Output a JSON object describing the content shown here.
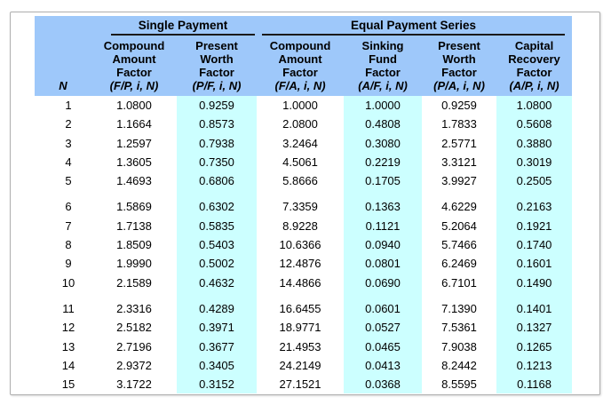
{
  "colors": {
    "header_bg": "#9ec8fa",
    "stripe_bg": "#ccffff",
    "frame_border": "#aeaeae",
    "rule": "#1a1a1a",
    "text": "#000000"
  },
  "table": {
    "groups": [
      {
        "label": "Single Payment",
        "span": 2
      },
      {
        "label": "Equal Payment Series",
        "span": 4
      }
    ],
    "columns": [
      {
        "key": "n",
        "label_lines": [],
        "notation": "N",
        "band": "white"
      },
      {
        "key": "fp",
        "label_lines": [
          "Compound",
          "Amount",
          "Factor"
        ],
        "notation": "(F/P, i, N)",
        "band": "white"
      },
      {
        "key": "pf",
        "label_lines": [
          "Present",
          "Worth",
          "Factor"
        ],
        "notation": "(P/F, i, N)",
        "band": "cyan"
      },
      {
        "key": "fa",
        "label_lines": [
          "Compound",
          "Amount",
          "Factor"
        ],
        "notation": "(F/A, i, N)",
        "band": "white"
      },
      {
        "key": "af",
        "label_lines": [
          "Sinking",
          "Fund",
          "Factor"
        ],
        "notation": "(A/F, i, N)",
        "band": "cyan"
      },
      {
        "key": "pa",
        "label_lines": [
          "Present",
          "Worth",
          "Factor"
        ],
        "notation": "(P/A, i, N)",
        "band": "white"
      },
      {
        "key": "ap",
        "label_lines": [
          "Capital",
          "Recovery",
          "Factor"
        ],
        "notation": "(A/P, i, N)",
        "band": "cyan"
      }
    ],
    "row_groups": [
      {
        "rows": [
          [
            "1",
            "1.0800",
            "0.9259",
            "1.0000",
            "1.0000",
            "0.9259",
            "1.0800"
          ],
          [
            "2",
            "1.1664",
            "0.8573",
            "2.0800",
            "0.4808",
            "1.7833",
            "0.5608"
          ],
          [
            "3",
            "1.2597",
            "0.7938",
            "3.2464",
            "0.3080",
            "2.5771",
            "0.3880"
          ],
          [
            "4",
            "1.3605",
            "0.7350",
            "4.5061",
            "0.2219",
            "3.3121",
            "0.3019"
          ],
          [
            "5",
            "1.4693",
            "0.6806",
            "5.8666",
            "0.1705",
            "3.9927",
            "0.2505"
          ]
        ]
      },
      {
        "rows": [
          [
            "6",
            "1.5869",
            "0.6302",
            "7.3359",
            "0.1363",
            "4.6229",
            "0.2163"
          ],
          [
            "7",
            "1.7138",
            "0.5835",
            "8.9228",
            "0.1121",
            "5.2064",
            "0.1921"
          ],
          [
            "8",
            "1.8509",
            "0.5403",
            "10.6366",
            "0.0940",
            "5.7466",
            "0.1740"
          ],
          [
            "9",
            "1.9990",
            "0.5002",
            "12.4876",
            "0.0801",
            "6.2469",
            "0.1601"
          ],
          [
            "10",
            "2.1589",
            "0.4632",
            "14.4866",
            "0.0690",
            "6.7101",
            "0.1490"
          ]
        ]
      },
      {
        "rows": [
          [
            "11",
            "2.3316",
            "0.4289",
            "16.6455",
            "0.0601",
            "7.1390",
            "0.1401"
          ],
          [
            "12",
            "2.5182",
            "0.3971",
            "18.9771",
            "0.0527",
            "7.5361",
            "0.1327"
          ],
          [
            "13",
            "2.7196",
            "0.3677",
            "21.4953",
            "0.0465",
            "7.9038",
            "0.1265"
          ],
          [
            "14",
            "2.9372",
            "0.3405",
            "24.2149",
            "0.0413",
            "8.2442",
            "0.1213"
          ],
          [
            "15",
            "3.1722",
            "0.3152",
            "27.1521",
            "0.0368",
            "8.5595",
            "0.1168"
          ]
        ]
      }
    ]
  }
}
